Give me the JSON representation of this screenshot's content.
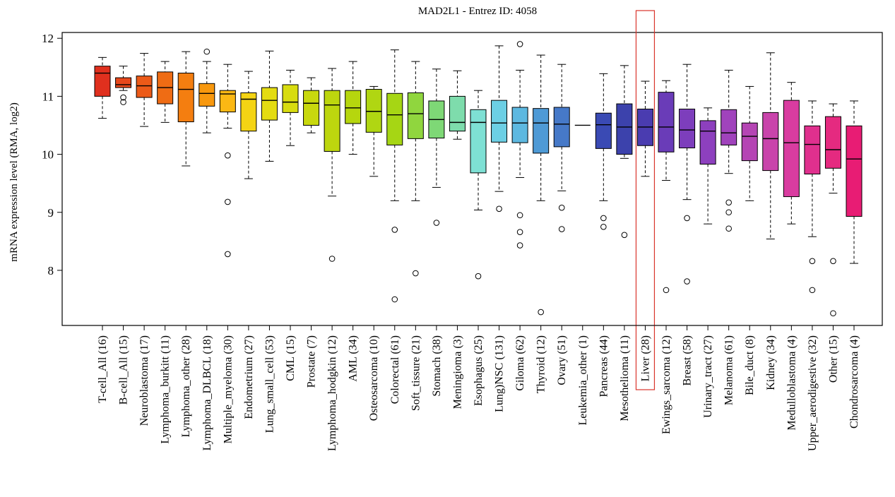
{
  "chart_data": {
    "type": "box",
    "title": "MAD2L1 - Entrez ID: 4058",
    "ylabel": "mRNA expression level (RMA, log2)",
    "xlabel": "",
    "ylim": [
      7.05,
      12.1
    ],
    "yticks": [
      "8",
      "9",
      "10",
      "11",
      "12"
    ],
    "ytick_values": [
      8,
      9,
      10,
      11,
      12
    ],
    "highlighted_category": "Liver (28)",
    "highlight_color": "#d9342b",
    "categories": [
      {
        "label": "T-cell_All (16)",
        "color": "#e0301e",
        "q1": 11.0,
        "median": 11.4,
        "q3": 11.52,
        "low": 10.62,
        "high": 11.67,
        "outliers": []
      },
      {
        "label": "B-cell_All (15)",
        "color": "#e8481c",
        "q1": 11.15,
        "median": 11.2,
        "q3": 11.32,
        "low": 11.1,
        "high": 11.52,
        "outliers": [
          10.98,
          10.9
        ]
      },
      {
        "label": "Neuroblastoma (17)",
        "color": "#ec5a18",
        "q1": 10.98,
        "median": 11.18,
        "q3": 11.35,
        "low": 10.48,
        "high": 11.74,
        "outliers": []
      },
      {
        "label": "Lymphoma_burkitt (11)",
        "color": "#ef6c14",
        "q1": 10.87,
        "median": 11.15,
        "q3": 11.42,
        "low": 10.55,
        "high": 11.6,
        "outliers": []
      },
      {
        "label": "Lymphoma_other (28)",
        "color": "#f47e10",
        "q1": 10.56,
        "median": 11.12,
        "q3": 11.4,
        "low": 9.8,
        "high": 11.77,
        "outliers": []
      },
      {
        "label": "Lymphoma_DLBCL (18)",
        "color": "#f8980e",
        "q1": 10.83,
        "median": 11.05,
        "q3": 11.22,
        "low": 10.37,
        "high": 11.6,
        "outliers": [
          11.77
        ]
      },
      {
        "label": "Multiple_myeloma (30)",
        "color": "#fbb814",
        "q1": 10.73,
        "median": 11.04,
        "q3": 11.1,
        "low": 10.45,
        "high": 11.55,
        "outliers": [
          9.98,
          9.18,
          8.28
        ]
      },
      {
        "label": "Endometrium (27)",
        "color": "#f4d414",
        "q1": 10.4,
        "median": 10.95,
        "q3": 11.06,
        "low": 9.58,
        "high": 11.43,
        "outliers": []
      },
      {
        "label": "Lung_small_cell (53)",
        "color": "#e4dc12",
        "q1": 10.59,
        "median": 10.93,
        "q3": 11.15,
        "low": 9.88,
        "high": 11.78,
        "outliers": []
      },
      {
        "label": "CML (15)",
        "color": "#d8dc10",
        "q1": 10.72,
        "median": 10.9,
        "q3": 11.2,
        "low": 10.15,
        "high": 11.45,
        "outliers": []
      },
      {
        "label": "Prostate (7)",
        "color": "#c8d80e",
        "q1": 10.5,
        "median": 10.88,
        "q3": 11.1,
        "low": 10.37,
        "high": 11.32,
        "outliers": []
      },
      {
        "label": "Lymphoma_hodgkin (12)",
        "color": "#bdd60e",
        "q1": 10.05,
        "median": 10.85,
        "q3": 11.1,
        "low": 9.28,
        "high": 11.48,
        "outliers": [
          8.2
        ]
      },
      {
        "label": "AML (34)",
        "color": "#b6d60e",
        "q1": 10.53,
        "median": 10.8,
        "q3": 11.1,
        "low": 10.0,
        "high": 11.6,
        "outliers": []
      },
      {
        "label": "Osteosarcoma (10)",
        "color": "#b0d612",
        "q1": 10.38,
        "median": 10.74,
        "q3": 11.12,
        "low": 9.62,
        "high": 11.17,
        "outliers": []
      },
      {
        "label": "Colorectal (61)",
        "color": "#a6d614",
        "q1": 10.16,
        "median": 10.68,
        "q3": 11.05,
        "low": 9.2,
        "high": 11.8,
        "outliers": [
          8.7,
          7.5
        ]
      },
      {
        "label": "Soft_tissure (21)",
        "color": "#90d63e",
        "q1": 10.27,
        "median": 10.7,
        "q3": 11.06,
        "low": 9.2,
        "high": 11.6,
        "outliers": [
          7.95
        ]
      },
      {
        "label": "Stomach (38)",
        "color": "#7ed876",
        "q1": 10.28,
        "median": 10.6,
        "q3": 10.92,
        "low": 9.43,
        "high": 11.47,
        "outliers": [
          8.82
        ]
      },
      {
        "label": "Meningioma (3)",
        "color": "#7edcac",
        "q1": 10.4,
        "median": 10.55,
        "q3": 11.0,
        "low": 10.26,
        "high": 11.44,
        "outliers": []
      },
      {
        "label": "Esophagus (25)",
        "color": "#7ee0d4",
        "q1": 9.68,
        "median": 10.55,
        "q3": 10.77,
        "low": 9.04,
        "high": 11.1,
        "outliers": [
          7.9
        ]
      },
      {
        "label": "Lung)NSC (131)",
        "color": "#6ccfe4",
        "q1": 10.21,
        "median": 10.54,
        "q3": 10.93,
        "low": 9.36,
        "high": 11.87,
        "outliers": [
          9.06
        ]
      },
      {
        "label": "Giloma (62)",
        "color": "#5db8e0",
        "q1": 10.2,
        "median": 10.54,
        "q3": 10.81,
        "low": 9.6,
        "high": 11.45,
        "outliers": [
          11.9,
          8.95,
          8.66,
          8.43
        ]
      },
      {
        "label": "Thyroid (12)",
        "color": "#4e9ad6",
        "q1": 10.02,
        "median": 10.54,
        "q3": 10.79,
        "low": 9.2,
        "high": 11.71,
        "outliers": [
          7.28
        ]
      },
      {
        "label": "Ovary (51)",
        "color": "#4679c8",
        "q1": 10.13,
        "median": 10.52,
        "q3": 10.81,
        "low": 9.37,
        "high": 11.55,
        "outliers": [
          9.08,
          8.71
        ]
      },
      {
        "label": "Leukemia_other (1)",
        "color": "#3f5ebc",
        "q1": 10.5,
        "median": 10.5,
        "q3": 10.5,
        "low": 10.5,
        "high": 10.5,
        "outliers": []
      },
      {
        "label": "Pancreas (44)",
        "color": "#3a4ab4",
        "q1": 10.1,
        "median": 10.51,
        "q3": 10.71,
        "low": 9.2,
        "high": 11.39,
        "outliers": [
          8.9,
          8.75
        ]
      },
      {
        "label": "Mesothelioma (11)",
        "color": "#3c42ac",
        "q1": 10.0,
        "median": 10.47,
        "q3": 10.87,
        "low": 9.93,
        "high": 11.53,
        "outliers": [
          8.61
        ]
      },
      {
        "label": "Liver (28)",
        "color": "#4a3cb0",
        "q1": 10.15,
        "median": 10.47,
        "q3": 10.78,
        "low": 9.62,
        "high": 11.26,
        "outliers": []
      },
      {
        "label": "Ewings_sarcoma (12)",
        "color": "#6a3cb8",
        "q1": 10.04,
        "median": 10.47,
        "q3": 11.07,
        "low": 9.55,
        "high": 11.27,
        "outliers": [
          7.66
        ]
      },
      {
        "label": "Breast (58)",
        "color": "#7d3ebc",
        "q1": 10.11,
        "median": 10.42,
        "q3": 10.78,
        "low": 9.22,
        "high": 11.55,
        "outliers": [
          8.9,
          7.81
        ]
      },
      {
        "label": "Urinary_tract (27)",
        "color": "#8d40be",
        "q1": 9.83,
        "median": 10.4,
        "q3": 10.58,
        "low": 8.8,
        "high": 10.8,
        "outliers": []
      },
      {
        "label": "Melanoma (61)",
        "color": "#a043bc",
        "q1": 10.16,
        "median": 10.37,
        "q3": 10.77,
        "low": 9.67,
        "high": 11.45,
        "outliers": [
          9.17,
          9.0,
          8.72
        ]
      },
      {
        "label": "Bile_duct (8)",
        "color": "#b545b4",
        "q1": 9.89,
        "median": 10.31,
        "q3": 10.54,
        "low": 9.2,
        "high": 11.17,
        "outliers": []
      },
      {
        "label": "Kidney (34)",
        "color": "#c944ab",
        "q1": 9.72,
        "median": 10.27,
        "q3": 10.72,
        "low": 8.54,
        "high": 11.75,
        "outliers": []
      },
      {
        "label": "Medulloblastoma (4)",
        "color": "#d93ca0",
        "q1": 9.27,
        "median": 10.2,
        "q3": 10.93,
        "low": 8.8,
        "high": 11.24,
        "outliers": []
      },
      {
        "label": "Upper_aerodigestive (32)",
        "color": "#e0308e",
        "q1": 9.66,
        "median": 10.17,
        "q3": 10.49,
        "low": 8.58,
        "high": 10.92,
        "outliers": [
          8.16,
          7.66
        ]
      },
      {
        "label": "Other (15)",
        "color": "#e52a80",
        "q1": 9.76,
        "median": 10.08,
        "q3": 10.65,
        "low": 9.33,
        "high": 10.87,
        "outliers": [
          8.16,
          7.26
        ]
      },
      {
        "label": "Chondrosarcoma (4)",
        "color": "#e81c74",
        "q1": 8.93,
        "median": 9.92,
        "q3": 10.49,
        "low": 8.12,
        "high": 10.92,
        "outliers": []
      }
    ]
  }
}
